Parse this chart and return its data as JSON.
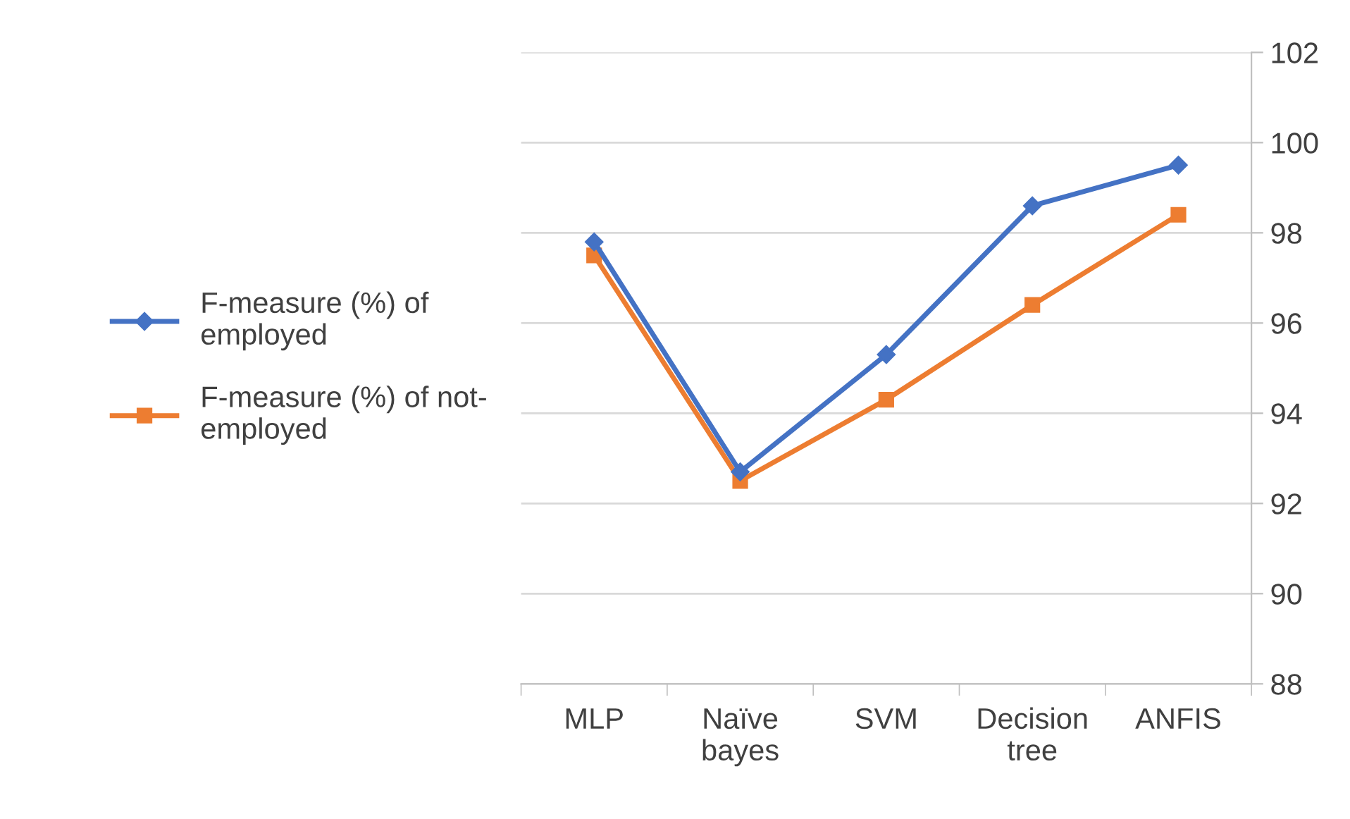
{
  "chart_data": {
    "type": "line",
    "categories": [
      "MLP",
      "Naïve\nbayes",
      "SVM",
      "Decision\ntree",
      "ANFIS"
    ],
    "series": [
      {
        "name": "F-measure (%) of\nemployed",
        "color": "#4472c4",
        "values": [
          97.8,
          92.7,
          95.3,
          98.6,
          99.5
        ],
        "marker": "diamond"
      },
      {
        "name": "F-measure (%) of not-\nemployed",
        "color": "#ed7d31",
        "values": [
          97.5,
          92.5,
          94.3,
          96.4,
          98.4
        ],
        "marker": "square"
      }
    ],
    "ylim": [
      88,
      102
    ],
    "yticks": [
      88,
      90,
      92,
      94,
      96,
      98,
      100,
      102
    ],
    "grid": "y",
    "legend": "left",
    "line_style": "solid"
  }
}
